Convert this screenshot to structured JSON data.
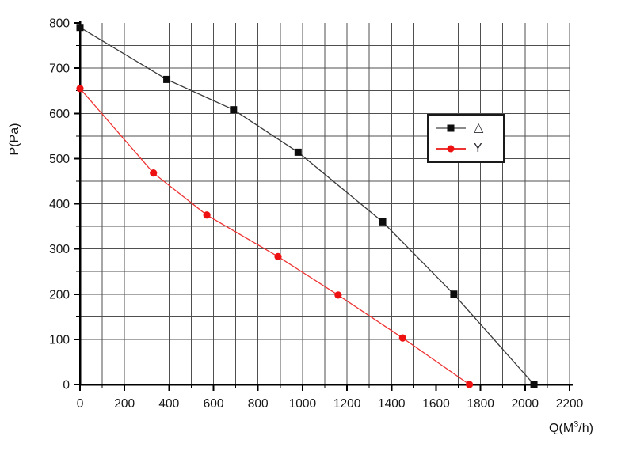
{
  "colors": {
    "background": "#ffffff",
    "axis": "#000000",
    "grid": "#4f4f4f",
    "grid_major": "#8c8c8c",
    "tick_text": "#161616",
    "legend_border": "#1a1a1a",
    "legend_text": "#2b2b33"
  },
  "chart_data": {
    "type": "line",
    "title": "",
    "xlabel": "Q(M³/h)",
    "xlabel_parts": {
      "pre": "Q(M",
      "sup": "3",
      "post": "/h)"
    },
    "ylabel": "P(Pa)",
    "xlim": [
      0,
      2200
    ],
    "ylim": [
      0,
      800
    ],
    "x_major_step": 200,
    "x_minor_step": 100,
    "y_major_step": 100,
    "y_minor_step": 50,
    "x_tick_labels": [
      "0",
      "200",
      "400",
      "600",
      "800",
      "1000",
      "1200",
      "1400",
      "1600",
      "1800",
      "2000",
      "2200"
    ],
    "y_tick_labels": [
      "0",
      "100",
      "200",
      "300",
      "400",
      "500",
      "600",
      "700",
      "800"
    ],
    "grid": true,
    "legend_position": "inside-upper-right",
    "series": [
      {
        "name": "△",
        "line_color": "#3a3a3a",
        "marker": "square",
        "marker_color": "#0d0d0d",
        "points": [
          [
            0,
            790
          ],
          [
            390,
            675
          ],
          [
            690,
            608
          ],
          [
            980,
            514
          ],
          [
            1360,
            360
          ],
          [
            1680,
            200
          ],
          [
            2040,
            0
          ]
        ]
      },
      {
        "name": "Y",
        "line_color": "#ee3333",
        "marker": "circle",
        "marker_color": "#ee1111",
        "points": [
          [
            0,
            655
          ],
          [
            330,
            468
          ],
          [
            570,
            375
          ],
          [
            890,
            283
          ],
          [
            1160,
            198
          ],
          [
            1450,
            103
          ],
          [
            1750,
            0
          ]
        ]
      }
    ]
  }
}
